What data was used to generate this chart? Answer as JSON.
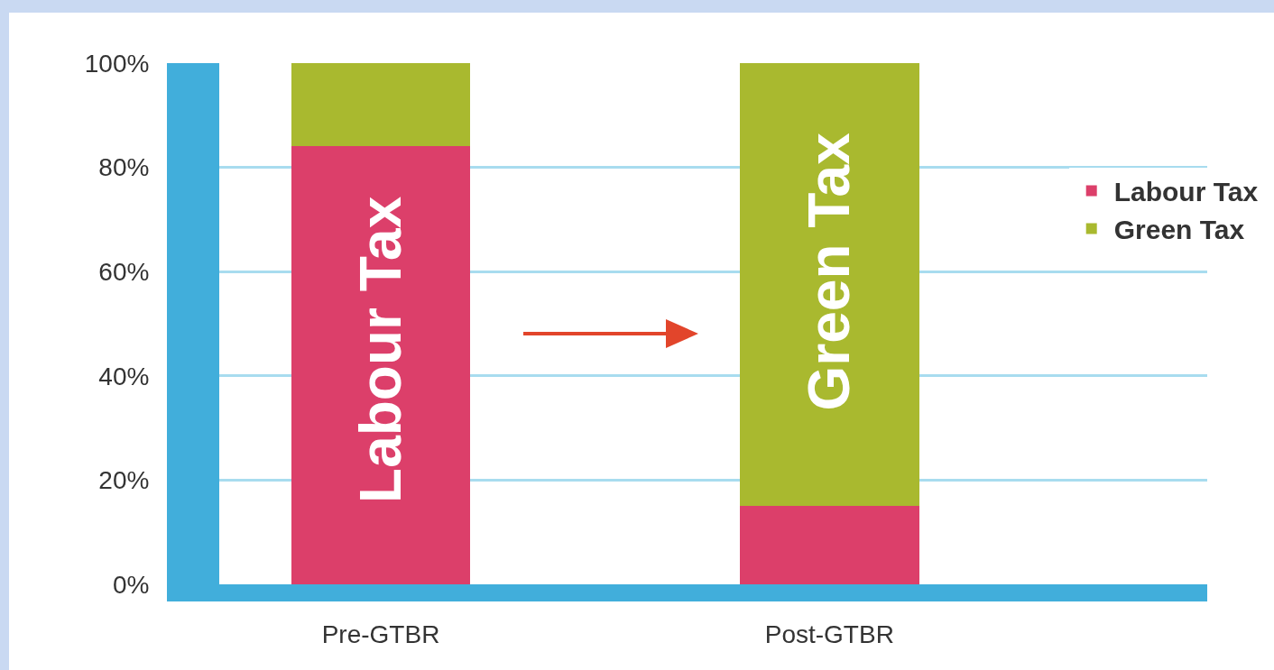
{
  "chart_data": {
    "type": "bar",
    "stacked": true,
    "categories": [
      "Pre-GTBR",
      "Post-GTBR"
    ],
    "series": [
      {
        "name": "Labour Tax",
        "color": "#dc3f6a",
        "values": [
          84,
          15
        ]
      },
      {
        "name": "Green Tax",
        "color": "#a9b92f",
        "values": [
          16,
          85
        ]
      }
    ],
    "ylim": [
      0,
      100
    ],
    "yticks": [
      {
        "value": 0,
        "label": "0%"
      },
      {
        "value": 20,
        "label": "20%"
      },
      {
        "value": 40,
        "label": "40%"
      },
      {
        "value": 60,
        "label": "60%"
      },
      {
        "value": 80,
        "label": "80%"
      },
      {
        "value": 100,
        "label": "100%"
      }
    ],
    "grid": "y",
    "legend": "right",
    "annotations": [
      "Labour Tax",
      "Green Tax"
    ]
  }
}
